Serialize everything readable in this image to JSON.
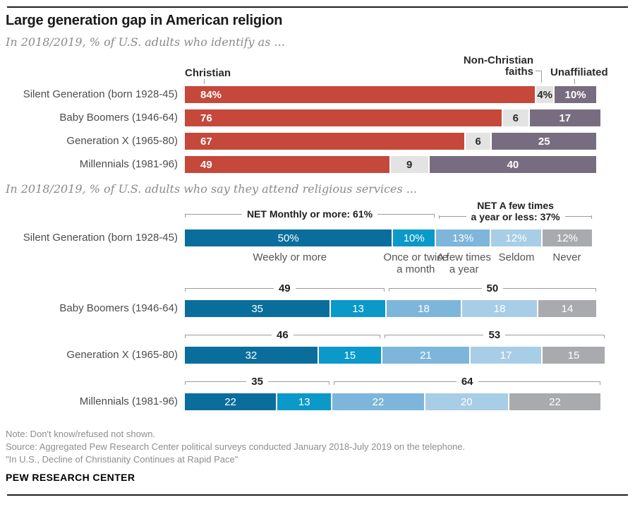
{
  "header": {
    "title": "Large generation gap in American religion"
  },
  "chart_data": [
    {
      "type": "bar",
      "stacked": true,
      "orientation": "horizontal",
      "title": "In 2018/2019, % of U.S. adults who identify as ...",
      "categories": [
        "Silent Generation (born 1928-45)",
        "Baby Boomers (1946-64)",
        "Generation X (1965-80)",
        "Millennials (1981-96)"
      ],
      "legend": {
        "christian": "Christian",
        "non_christian": "Non-Christian\nfaiths",
        "unaffiliated": "Unaffiliated"
      },
      "series": [
        {
          "name": "Christian",
          "color": "#c5483b",
          "text_color": "#ffffff",
          "values": [
            84,
            76,
            67,
            49
          ],
          "labels": [
            "84%",
            "76",
            "67",
            "49"
          ]
        },
        {
          "name": "Non-Christian faiths",
          "color": "#e3e3e3",
          "text_color": "#2b2b2b",
          "values": [
            4,
            6,
            6,
            9
          ],
          "labels": [
            "4%",
            "6",
            "6",
            "9"
          ]
        },
        {
          "name": "Unaffiliated",
          "color": "#786d80",
          "text_color": "#ffffff",
          "values": [
            10,
            17,
            25,
            40
          ],
          "labels": [
            "10%",
            "17",
            "25",
            "40"
          ]
        }
      ],
      "xlim": [
        0,
        100
      ],
      "grid": false
    },
    {
      "type": "bar",
      "stacked": true,
      "orientation": "horizontal",
      "title": "In 2018/2019, % of U.S. adults who say they attend religious services ...",
      "categories": [
        "Silent Generation (born 1928-45)",
        "Baby Boomers (1946-64)",
        "Generation X (1965-80)",
        "Millennials (1981-96)"
      ],
      "series": [
        {
          "name": "Weekly or more",
          "color": "#0a6e9d",
          "values": [
            50,
            35,
            32,
            22
          ],
          "labels": [
            "50%",
            "35",
            "32",
            "22"
          ]
        },
        {
          "name": "Once or twice a month",
          "color": "#0a99c8",
          "values": [
            10,
            13,
            15,
            13
          ],
          "labels": [
            "10%",
            "13",
            "15",
            "13"
          ]
        },
        {
          "name": "A few times a year",
          "color": "#7db6da",
          "values": [
            13,
            18,
            21,
            22
          ],
          "labels": [
            "13%",
            "18",
            "21",
            "22"
          ]
        },
        {
          "name": "Seldom",
          "color": "#a8cde7",
          "values": [
            12,
            18,
            17,
            20
          ],
          "labels": [
            "12%",
            "18",
            "17",
            "20"
          ]
        },
        {
          "name": "Never",
          "color": "#a8aaad",
          "values": [
            12,
            14,
            15,
            22
          ],
          "labels": [
            "12%",
            "14",
            "15",
            "22"
          ]
        }
      ],
      "segment_axis_labels": [
        "Weekly or more",
        "Once or twice\na month",
        "A few times\na year",
        "Seldom",
        "Never"
      ],
      "net_groups": [
        {
          "left_label": "NET Monthly or more: 61%",
          "right_label": "NET A few times\na year or less: 37%"
        },
        {
          "left_label": "49",
          "right_label": "50"
        },
        {
          "left_label": "46",
          "right_label": "53"
        },
        {
          "left_label": "35",
          "right_label": "64"
        }
      ],
      "xlim": [
        0,
        100
      ],
      "grid": false
    }
  ],
  "notes": [
    "Note: Don't know/refused not shown.",
    "Source: Aggregated Pew Research Center political surveys conducted January 2018-July 2019 on the telephone.",
    "\"In U.S., Decline of Christianity Continues at Rapid Pace\""
  ],
  "brand": "PEW RESEARCH CENTER"
}
